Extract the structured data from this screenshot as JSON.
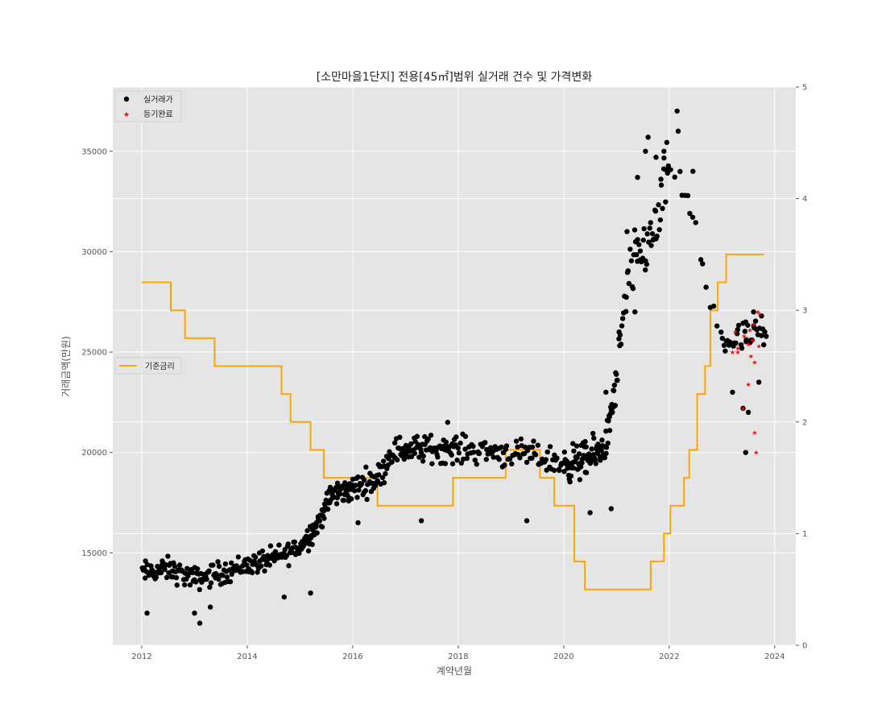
{
  "chart_data": {
    "type": "scatter",
    "title": "[소만마을1단지] 전용[45㎡]범위 실거래 건수 및 가격변화",
    "xlabel": "계약년월",
    "ylabel": "거래금액(만원)",
    "xlim": [
      2011.45,
      2024.4
    ],
    "ylim": [
      10400,
      38200
    ],
    "y2lim": [
      0,
      5
    ],
    "x_ticks": [
      2012,
      2014,
      2016,
      2018,
      2020,
      2022,
      2024
    ],
    "y_ticks": [
      15000,
      20000,
      25000,
      30000,
      35000
    ],
    "y2_ticks": [
      0,
      1,
      2,
      3,
      4,
      5
    ],
    "grid": true,
    "colors": {
      "background": "#e5e5e5",
      "grid": "#ffffff",
      "trades": "#000000",
      "registered": "#ff0000",
      "rate": "#ffa500"
    },
    "legend_scatter": {
      "placement": "top-left",
      "entries": [
        {
          "label": "실거래가",
          "marker": "circle",
          "color": "#000000"
        },
        {
          "label": "등기완료",
          "marker": "star",
          "color": "#ff0000"
        }
      ]
    },
    "legend_line": {
      "placement": "center-left",
      "entries": [
        {
          "label": "기준금리",
          "color": "#ffa500"
        }
      ]
    },
    "series": [
      {
        "name": "실거래가",
        "marker": "circle",
        "axis": "left",
        "anchors": [
          [
            2012.0,
            14000
          ],
          [
            2012.5,
            14200
          ],
          [
            2013.0,
            13700
          ],
          [
            2013.5,
            14000
          ],
          [
            2014.0,
            14400
          ],
          [
            2014.5,
            14700
          ],
          [
            2015.0,
            15300
          ],
          [
            2015.35,
            16500
          ],
          [
            2015.6,
            17900
          ],
          [
            2016.0,
            18200
          ],
          [
            2016.5,
            18800
          ],
          [
            2016.75,
            20100
          ],
          [
            2017.5,
            20200
          ],
          [
            2018.5,
            20100
          ],
          [
            2019.5,
            19800
          ],
          [
            2020.0,
            19400
          ],
          [
            2020.5,
            19700
          ],
          [
            2020.8,
            20400
          ],
          [
            2021.0,
            23500
          ],
          [
            2021.25,
            29000
          ],
          [
            2021.6,
            30500
          ],
          [
            2021.8,
            31500
          ],
          [
            2022.0,
            34500
          ],
          [
            2022.3,
            33000
          ],
          [
            2022.6,
            29500
          ],
          [
            2022.8,
            27500
          ],
          [
            2023.0,
            25500
          ],
          [
            2023.8,
            25800
          ]
        ],
        "segments": [
          {
            "x": [
              2012.0,
              2015.0
            ],
            "n": 180,
            "spread": 850
          },
          {
            "x": [
              2015.0,
              2016.0
            ],
            "n": 90,
            "spread": 900
          },
          {
            "x": [
              2016.0,
              2018.0
            ],
            "n": 130,
            "spread": 1000
          },
          {
            "x": [
              2018.0,
              2020.0
            ],
            "n": 90,
            "spread": 1000
          },
          {
            "x": [
              2020.0,
              2021.0
            ],
            "n": 100,
            "spread": 1300
          },
          {
            "x": [
              2021.0,
              2022.0
            ],
            "n": 60,
            "spread": 2200
          },
          {
            "x": [
              2022.0,
              2023.0
            ],
            "n": 14,
            "spread": 1500
          },
          {
            "x": [
              2023.0,
              2023.85
            ],
            "n": 35,
            "spread": 1200
          }
        ],
        "points": [
          [
            2012.1,
            12000
          ],
          [
            2013.0,
            12000
          ],
          [
            2013.1,
            11500
          ],
          [
            2013.3,
            12300
          ],
          [
            2014.7,
            12800
          ],
          [
            2015.2,
            13000
          ],
          [
            2016.1,
            16500
          ],
          [
            2017.8,
            21500
          ],
          [
            2019.3,
            16600
          ],
          [
            2017.3,
            16600
          ],
          [
            2020.5,
            17000
          ],
          [
            2020.9,
            17200
          ],
          [
            2020.8,
            23000
          ],
          [
            2021.05,
            26000
          ],
          [
            2021.2,
            31000
          ],
          [
            2021.35,
            27000
          ],
          [
            2021.4,
            33700
          ],
          [
            2021.55,
            35000
          ],
          [
            2021.6,
            35700
          ],
          [
            2021.75,
            34700
          ],
          [
            2021.9,
            35000
          ],
          [
            2022.15,
            37000
          ],
          [
            2022.17,
            36000
          ],
          [
            2022.3,
            32800
          ],
          [
            2022.45,
            34000
          ],
          [
            2022.6,
            29600
          ],
          [
            2023.45,
            20000
          ],
          [
            2023.5,
            22000
          ],
          [
            2023.45,
            26500
          ],
          [
            2023.6,
            27000
          ],
          [
            2023.7,
            23500
          ],
          [
            2023.75,
            26800
          ],
          [
            2023.4,
            22200
          ],
          [
            2023.2,
            23000
          ]
        ]
      },
      {
        "name": "등기완료",
        "marker": "star",
        "axis": "left",
        "points": [
          [
            2023.2,
            25000
          ],
          [
            2023.25,
            26000
          ],
          [
            2023.3,
            25200
          ],
          [
            2023.4,
            22200
          ],
          [
            2023.42,
            25800
          ],
          [
            2023.5,
            23400
          ],
          [
            2023.53,
            26100
          ],
          [
            2023.55,
            24800
          ],
          [
            2023.58,
            25600
          ],
          [
            2023.6,
            26400
          ],
          [
            2023.62,
            21000
          ],
          [
            2023.65,
            20000
          ],
          [
            2023.68,
            27000
          ],
          [
            2023.7,
            25300
          ],
          [
            2023.72,
            26900
          ],
          [
            2023.62,
            24500
          ],
          [
            2023.5,
            25400
          ],
          [
            2023.3,
            25000
          ]
        ]
      },
      {
        "name": "기준금리",
        "type": "step",
        "axis": "right",
        "points": [
          [
            2012.0,
            3.25
          ],
          [
            2012.55,
            3.0
          ],
          [
            2012.82,
            2.75
          ],
          [
            2013.38,
            2.5
          ],
          [
            2014.65,
            2.25
          ],
          [
            2014.82,
            2.0
          ],
          [
            2015.2,
            1.75
          ],
          [
            2015.45,
            1.5
          ],
          [
            2016.47,
            1.25
          ],
          [
            2017.9,
            1.5
          ],
          [
            2018.9,
            1.75
          ],
          [
            2019.55,
            1.5
          ],
          [
            2019.82,
            1.25
          ],
          [
            2020.2,
            0.75
          ],
          [
            2020.4,
            0.5
          ],
          [
            2021.65,
            0.75
          ],
          [
            2021.9,
            1.0
          ],
          [
            2022.02,
            1.25
          ],
          [
            2022.28,
            1.5
          ],
          [
            2022.38,
            1.75
          ],
          [
            2022.53,
            2.25
          ],
          [
            2022.68,
            2.5
          ],
          [
            2022.78,
            3.0
          ],
          [
            2022.92,
            3.25
          ],
          [
            2023.08,
            3.5
          ],
          [
            2023.8,
            3.5
          ]
        ]
      }
    ]
  }
}
